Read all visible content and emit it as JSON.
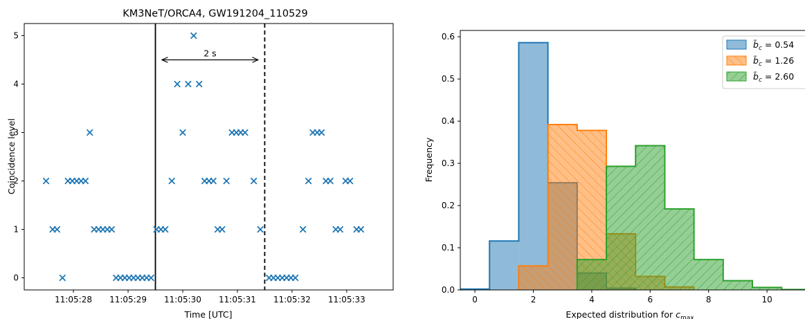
{
  "chart_data": [
    {
      "type": "scatter",
      "title": "KM3NeT/ORCA4, GW191204_110529",
      "xlabel": "Time [UTC]",
      "ylabel": "Coincidence level",
      "x_unit": "seconds after 11:05:27",
      "xlim": [
        0.1,
        6.85
      ],
      "ylim": [
        -0.25,
        5.25
      ],
      "x_ticks": [
        {
          "v": 1.0,
          "label": "11:05:28"
        },
        {
          "v": 2.0,
          "label": "11:05:29"
        },
        {
          "v": 3.0,
          "label": "11:05:30"
        },
        {
          "v": 4.0,
          "label": "11:05:31"
        },
        {
          "v": 5.0,
          "label": "11:05:32"
        },
        {
          "v": 6.0,
          "label": "11:05:33"
        }
      ],
      "y_ticks": [
        0,
        1,
        2,
        3,
        4,
        5
      ],
      "marker_color": "#1f77b4",
      "event_line": {
        "x": 2.5,
        "style": "solid"
      },
      "window_end_line": {
        "x": 4.5,
        "style": "dashed"
      },
      "annotation": {
        "text": "2 s",
        "x_from": 2.62,
        "x_to": 4.38,
        "y": 4.5
      },
      "points": [
        [
          0.5,
          2
        ],
        [
          0.62,
          1
        ],
        [
          0.7,
          1
        ],
        [
          0.8,
          0
        ],
        [
          0.9,
          2
        ],
        [
          0.98,
          2
        ],
        [
          1.06,
          2
        ],
        [
          1.14,
          2
        ],
        [
          1.22,
          2
        ],
        [
          1.3,
          3
        ],
        [
          1.38,
          1
        ],
        [
          1.46,
          1
        ],
        [
          1.54,
          1
        ],
        [
          1.62,
          1
        ],
        [
          1.7,
          1
        ],
        [
          1.78,
          0
        ],
        [
          1.86,
          0
        ],
        [
          1.94,
          0
        ],
        [
          2.02,
          0
        ],
        [
          2.1,
          0
        ],
        [
          2.18,
          0
        ],
        [
          2.26,
          0
        ],
        [
          2.34,
          0
        ],
        [
          2.42,
          0
        ],
        [
          2.52,
          1
        ],
        [
          2.6,
          1
        ],
        [
          2.68,
          1
        ],
        [
          2.8,
          2
        ],
        [
          2.9,
          4
        ],
        [
          3.0,
          3
        ],
        [
          3.1,
          4
        ],
        [
          3.2,
          5
        ],
        [
          3.3,
          4
        ],
        [
          3.4,
          2
        ],
        [
          3.48,
          2
        ],
        [
          3.56,
          2
        ],
        [
          3.64,
          1
        ],
        [
          3.72,
          1
        ],
        [
          3.8,
          2
        ],
        [
          3.9,
          3
        ],
        [
          3.98,
          3
        ],
        [
          4.06,
          3
        ],
        [
          4.14,
          3
        ],
        [
          4.3,
          2
        ],
        [
          4.42,
          1
        ],
        [
          4.58,
          0
        ],
        [
          4.66,
          0
        ],
        [
          4.74,
          0
        ],
        [
          4.82,
          0
        ],
        [
          4.9,
          0
        ],
        [
          4.98,
          0
        ],
        [
          5.06,
          0
        ],
        [
          5.2,
          1
        ],
        [
          5.3,
          2
        ],
        [
          5.38,
          3
        ],
        [
          5.46,
          3
        ],
        [
          5.54,
          3
        ],
        [
          5.62,
          2
        ],
        [
          5.7,
          2
        ],
        [
          5.8,
          1
        ],
        [
          5.88,
          1
        ],
        [
          5.98,
          2
        ],
        [
          6.06,
          2
        ],
        [
          6.18,
          1
        ],
        [
          6.26,
          1
        ]
      ]
    },
    {
      "type": "bar",
      "subtype": "histogram",
      "xlabel": "Expected distribution for c_max",
      "ylabel": "Frequency",
      "xlim": [
        -0.5,
        11.3
      ],
      "ylim": [
        0,
        0.615
      ],
      "x_ticks": [
        0,
        2,
        4,
        6,
        8,
        10
      ],
      "y_ticks": [
        0.0,
        0.1,
        0.2,
        0.3,
        0.4,
        0.5,
        0.6
      ],
      "y_tick_labels": [
        "0.0",
        "0.1",
        "0.2",
        "0.3",
        "0.4",
        "0.5",
        "0.6"
      ],
      "bin_edges": [
        -0.5,
        0.5,
        1.5,
        2.5,
        3.5,
        4.5,
        5.5,
        6.5,
        7.5,
        8.5,
        9.5,
        10.5,
        11.5
      ],
      "legend_position": "top-right",
      "series": [
        {
          "name": "0.54",
          "color": "#1f77b4",
          "hatch": "none",
          "values": [
            0.002,
            0.116,
            0.586,
            0.254,
            0.04,
            0.004,
            0.0,
            0.0,
            0.0,
            0.0,
            0.0,
            0.0
          ]
        },
        {
          "name": "1.26",
          "color": "#ff7f0e",
          "hatch": "forward",
          "values": [
            0.0,
            0.0,
            0.057,
            0.392,
            0.378,
            0.133,
            0.032,
            0.007,
            0.0,
            0.0,
            0.0,
            0.0
          ]
        },
        {
          "name": "2.60",
          "color": "#2ca02c",
          "hatch": "backward",
          "values": [
            0.0,
            0.0,
            0.0,
            0.0,
            0.072,
            0.293,
            0.342,
            0.192,
            0.072,
            0.022,
            0.006,
            0.001
          ]
        }
      ]
    }
  ]
}
